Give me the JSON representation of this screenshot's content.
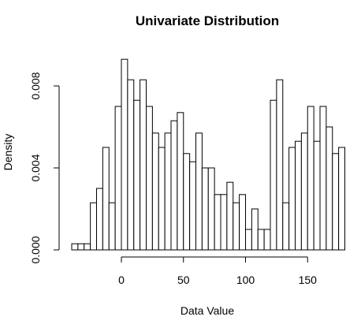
{
  "chart_data": {
    "type": "bar",
    "title": "Univariate Distribution",
    "xlabel": "Data Value",
    "ylabel": "Density",
    "bin_width": 5,
    "xlim": [
      -42,
      180
    ],
    "ylim": [
      0,
      0.0097
    ],
    "x_ticks": [
      0,
      50,
      100,
      150
    ],
    "y_ticks": [
      0.0,
      0.004,
      0.008
    ],
    "y_tick_labels": [
      "0.000",
      "0.004",
      "0.008"
    ],
    "grid": false,
    "legend": "none",
    "bins": [
      {
        "start": -40,
        "end": -35,
        "density": 0.0003
      },
      {
        "start": -35,
        "end": -30,
        "density": 0.0003
      },
      {
        "start": -30,
        "end": -25,
        "density": 0.0003
      },
      {
        "start": -25,
        "end": -20,
        "density": 0.0023
      },
      {
        "start": -20,
        "end": -15,
        "density": 0.003
      },
      {
        "start": -15,
        "end": -10,
        "density": 0.005
      },
      {
        "start": -10,
        "end": -5,
        "density": 0.0023
      },
      {
        "start": -5,
        "end": 0,
        "density": 0.007
      },
      {
        "start": 0,
        "end": 5,
        "density": 0.0093
      },
      {
        "start": 5,
        "end": 10,
        "density": 0.0083
      },
      {
        "start": 10,
        "end": 15,
        "density": 0.0073
      },
      {
        "start": 15,
        "end": 20,
        "density": 0.0083
      },
      {
        "start": 20,
        "end": 25,
        "density": 0.007
      },
      {
        "start": 25,
        "end": 30,
        "density": 0.0057
      },
      {
        "start": 30,
        "end": 35,
        "density": 0.005
      },
      {
        "start": 35,
        "end": 40,
        "density": 0.0057
      },
      {
        "start": 40,
        "end": 45,
        "density": 0.0063
      },
      {
        "start": 45,
        "end": 50,
        "density": 0.0067
      },
      {
        "start": 50,
        "end": 55,
        "density": 0.0047
      },
      {
        "start": 55,
        "end": 60,
        "density": 0.0043
      },
      {
        "start": 60,
        "end": 65,
        "density": 0.0057
      },
      {
        "start": 65,
        "end": 70,
        "density": 0.004
      },
      {
        "start": 70,
        "end": 75,
        "density": 0.004
      },
      {
        "start": 75,
        "end": 80,
        "density": 0.0027
      },
      {
        "start": 80,
        "end": 85,
        "density": 0.0027
      },
      {
        "start": 85,
        "end": 90,
        "density": 0.0033
      },
      {
        "start": 90,
        "end": 95,
        "density": 0.0023
      },
      {
        "start": 95,
        "end": 100,
        "density": 0.0027
      },
      {
        "start": 100,
        "end": 105,
        "density": 0.001
      },
      {
        "start": 105,
        "end": 110,
        "density": 0.002
      },
      {
        "start": 110,
        "end": 115,
        "density": 0.001
      },
      {
        "start": 115,
        "end": 120,
        "density": 0.001
      },
      {
        "start": 120,
        "end": 125,
        "density": 0.0073
      },
      {
        "start": 125,
        "end": 130,
        "density": 0.0083
      },
      {
        "start": 130,
        "end": 135,
        "density": 0.0023
      },
      {
        "start": 135,
        "end": 140,
        "density": 0.005
      },
      {
        "start": 140,
        "end": 145,
        "density": 0.0053
      },
      {
        "start": 145,
        "end": 150,
        "density": 0.0057
      },
      {
        "start": 150,
        "end": 155,
        "density": 0.007
      },
      {
        "start": 155,
        "end": 160,
        "density": 0.0053
      },
      {
        "start": 160,
        "end": 165,
        "density": 0.007
      },
      {
        "start": 165,
        "end": 170,
        "density": 0.006
      },
      {
        "start": 170,
        "end": 175,
        "density": 0.0047
      },
      {
        "start": 175,
        "end": 180,
        "density": 0.005
      }
    ]
  }
}
